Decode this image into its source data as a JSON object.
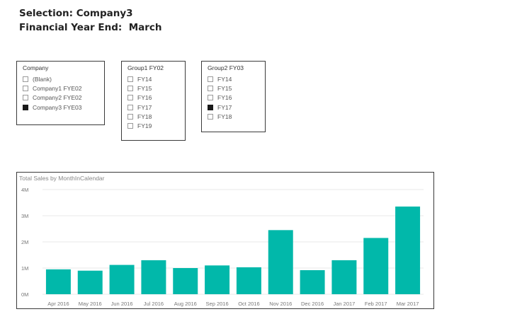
{
  "header": {
    "selection_text": "Selection: Company3",
    "fye_text": "Financial Year End:  March"
  },
  "slicers": {
    "company": {
      "title": "Company",
      "items": [
        {
          "label": "(Blank)",
          "checked": false
        },
        {
          "label": "Company1 FYE02",
          "checked": false
        },
        {
          "label": "Company2 FYE02",
          "checked": false
        },
        {
          "label": "Company3 FYE03",
          "checked": true
        }
      ]
    },
    "group1": {
      "title": "Group1 FY02",
      "items": [
        {
          "label": "FY14",
          "checked": false
        },
        {
          "label": "FY15",
          "checked": false
        },
        {
          "label": "FY16",
          "checked": false
        },
        {
          "label": "FY17",
          "checked": false
        },
        {
          "label": "FY18",
          "checked": false
        },
        {
          "label": "FY19",
          "checked": false
        }
      ]
    },
    "group2": {
      "title": "Group2 FY03",
      "items": [
        {
          "label": "FY14",
          "checked": false
        },
        {
          "label": "FY15",
          "checked": false
        },
        {
          "label": "FY16",
          "checked": false
        },
        {
          "label": "FY17",
          "checked": true
        },
        {
          "label": "FY18",
          "checked": false
        }
      ]
    }
  },
  "colors": {
    "bar": "#01b8aa",
    "gridline": "#e8e8e8",
    "axis_text": "#777777",
    "checkbox_checked": "#1a1a1a"
  },
  "chart_data": {
    "type": "bar",
    "title": "Total Sales by MonthInCalendar",
    "xlabel": "",
    "ylabel": "",
    "categories": [
      "Apr 2016",
      "May 2016",
      "Jun 2016",
      "Jul 2016",
      "Aug 2016",
      "Sep 2016",
      "Oct 2016",
      "Nov 2016",
      "Dec 2016",
      "Jan 2017",
      "Feb 2017",
      "Mar 2017"
    ],
    "values": [
      0.95,
      0.9,
      1.12,
      1.3,
      1.0,
      1.1,
      1.03,
      2.45,
      0.92,
      1.3,
      2.15,
      3.35
    ],
    "value_unit": "millions",
    "ylim": [
      0,
      4
    ],
    "yticks": [
      0,
      1,
      2,
      3,
      4
    ],
    "ytick_labels": [
      "0M",
      "1M",
      "2M",
      "3M",
      "4M"
    ],
    "grid": true,
    "legend": "none"
  }
}
